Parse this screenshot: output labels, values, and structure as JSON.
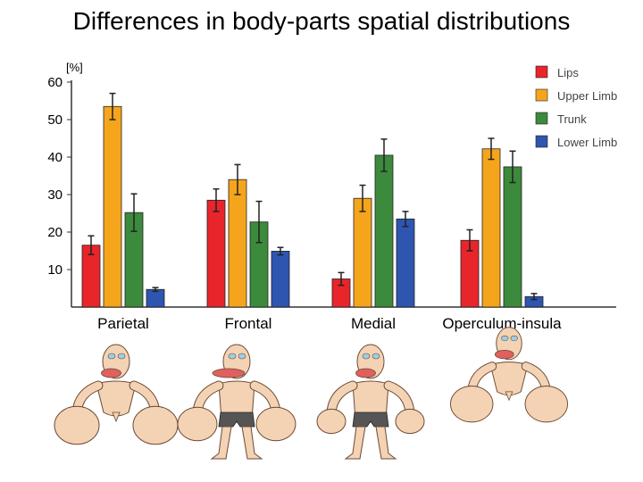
{
  "title": "Differences in body-parts spatial distributions",
  "chart_data": {
    "type": "bar",
    "title": "Differences in body-parts spatial distributions",
    "ylabel": "[%]",
    "xlabel": "",
    "ylim": [
      0,
      60
    ],
    "yticks": [
      10,
      20,
      30,
      40,
      50,
      60
    ],
    "categories": [
      "Parietal",
      "Frontal",
      "Medial",
      "Operculum-insula"
    ],
    "series": [
      {
        "name": "Lips",
        "color": "#e8252b",
        "values": [
          16.5,
          28.5,
          7.5,
          17.8
        ],
        "errors": [
          2.5,
          3.0,
          1.7,
          2.8
        ]
      },
      {
        "name": "Upper Limb",
        "color": "#f5a51c",
        "values": [
          53.5,
          34.0,
          29.0,
          42.2
        ],
        "errors": [
          3.5,
          4.0,
          3.5,
          2.8
        ]
      },
      {
        "name": "Trunk",
        "color": "#3c8a3c",
        "values": [
          25.2,
          22.7,
          40.5,
          37.4
        ],
        "errors": [
          5.0,
          5.5,
          4.3,
          4.2
        ]
      },
      {
        "name": "Lower Limb",
        "color": "#2e55b0",
        "values": [
          4.7,
          14.9,
          23.5,
          2.8
        ],
        "errors": [
          0.5,
          1.0,
          2.0,
          0.8
        ]
      }
    ],
    "legend_position": "top-right"
  },
  "figures": [
    {
      "name": "parietal-homunculus",
      "skin": "#f4d2b4",
      "lips": "#e06060",
      "shorts": ""
    },
    {
      "name": "frontal-homunculus",
      "skin": "#f4d2b4",
      "lips": "#e06060",
      "shorts": "#555555"
    },
    {
      "name": "medial-homunculus",
      "skin": "#f4d2b4",
      "lips": "#e06060",
      "shorts": "#555555"
    },
    {
      "name": "operculum-insula-homunculus",
      "skin": "#f4d2b4",
      "lips": "#e06060",
      "shorts": ""
    }
  ]
}
